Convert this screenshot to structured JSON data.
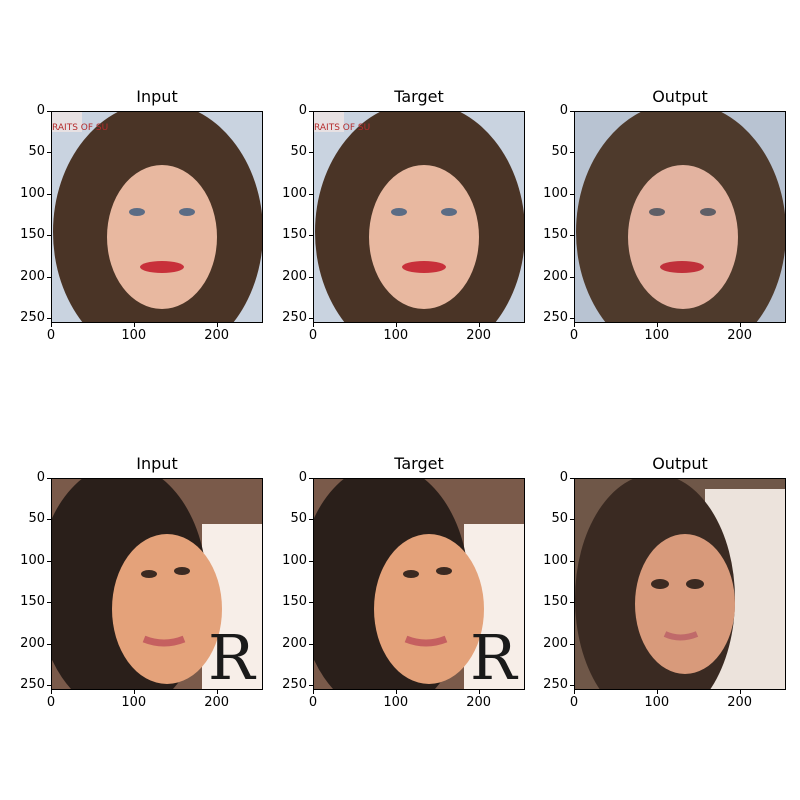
{
  "rows": [
    {
      "panels": [
        {
          "title": "Input",
          "subject": "face-1-input"
        },
        {
          "title": "Target",
          "subject": "face-1-target"
        },
        {
          "title": "Output",
          "subject": "face-1-output"
        }
      ]
    },
    {
      "panels": [
        {
          "title": "Input",
          "subject": "face-2-input"
        },
        {
          "title": "Target",
          "subject": "face-2-target"
        },
        {
          "title": "Output",
          "subject": "face-2-output"
        }
      ]
    }
  ],
  "axes": {
    "y_ticks": [
      "0",
      "50",
      "100",
      "150",
      "200",
      "250"
    ],
    "x_ticks": [
      "0",
      "100",
      "200"
    ]
  },
  "colors": {
    "background_1": "#c9d3e0",
    "background_2": "#7a5a4a",
    "hair": "#4a3426",
    "skin": "#e8b8a0",
    "lips": "#c8303a"
  }
}
